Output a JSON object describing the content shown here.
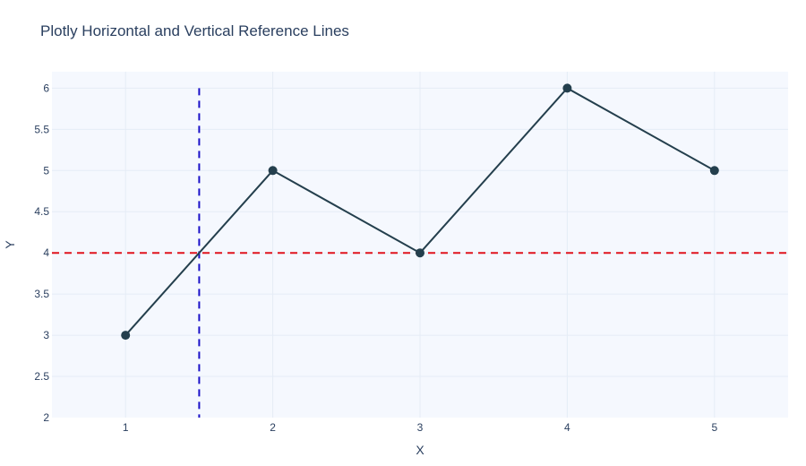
{
  "chart_data": {
    "type": "line",
    "title": "Plotly Horizontal and Vertical Reference Lines",
    "xlabel": "X",
    "ylabel": "Y",
    "xlim": [
      0.5,
      5.5
    ],
    "ylim": [
      2,
      6.2
    ],
    "x_ticks": [
      1,
      2,
      3,
      4,
      5
    ],
    "y_ticks": [
      2,
      2.5,
      3,
      3.5,
      4,
      4.5,
      5,
      5.5,
      6
    ],
    "grid": true,
    "series": [
      {
        "x": [
          1,
          2,
          3,
          4,
          5
        ],
        "values": [
          3,
          5,
          4,
          6,
          5
        ],
        "color": "#243f4d",
        "mode": "lines+markers"
      }
    ],
    "reference_lines": [
      {
        "orientation": "horizontal",
        "y": 4,
        "color": "#e0141e",
        "dash": "dashed"
      },
      {
        "orientation": "vertical",
        "x": 1.5,
        "y_range": [
          2,
          6
        ],
        "color": "#1a10c8",
        "dash": "dashed"
      }
    ],
    "colors": {
      "plot_bg": "#f5f8fe",
      "grid": "#e5ecf6",
      "text": "#2a3f5f"
    }
  }
}
